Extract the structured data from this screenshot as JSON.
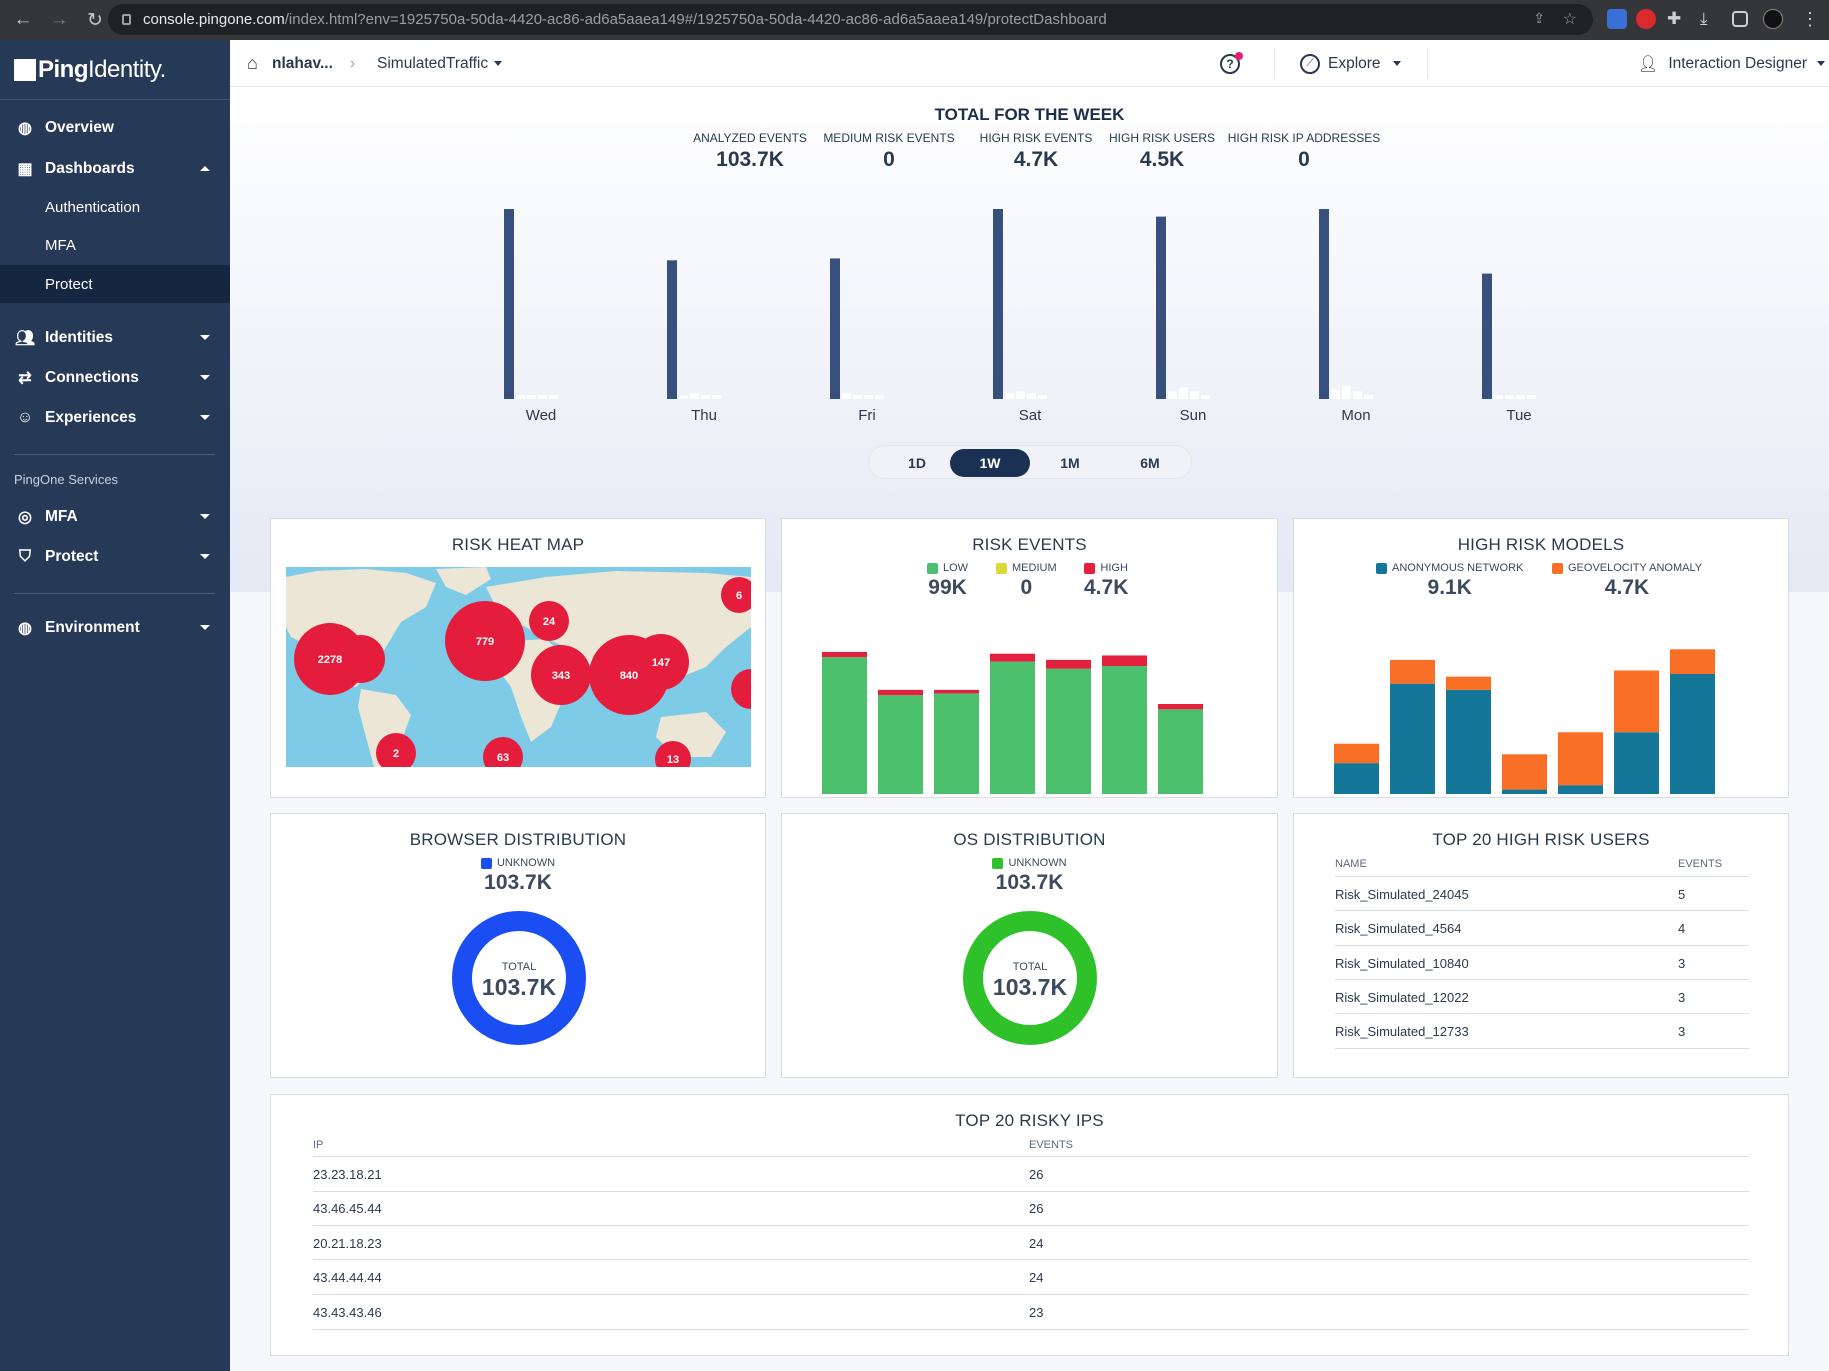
{
  "browser": {
    "url_host": "console.pingone.com",
    "url_path": "/index.html?env=1925750a-50da-4420-ac86-ad6a5aaea149#/1925750a-50da-4420-ac86-ad6a5aaea149/protectDashboard"
  },
  "sidebar": {
    "brand_bold": "Ping",
    "brand_light": "Identity.",
    "overview": "Overview",
    "dashboards": "Dashboards",
    "dash_items": [
      "Authentication",
      "MFA",
      "Protect"
    ],
    "identities": "Identities",
    "connections": "Connections",
    "experiences": "Experiences",
    "services_header": "PingOne Services",
    "svc_mfa": "MFA",
    "svc_protect": "Protect",
    "environment": "Environment"
  },
  "topbar": {
    "env_name": "nlahav...",
    "breadcrumb_sep": "›",
    "traffic": "SimulatedTraffic",
    "explore": "Explore",
    "user": "Interaction Designer"
  },
  "week": {
    "title": "TOTAL FOR THE WEEK",
    "stats": [
      {
        "label": "ANALYZED EVENTS",
        "value": "103.7K"
      },
      {
        "label": "MEDIUM RISK EVENTS",
        "value": "0"
      },
      {
        "label": "HIGH RISK EVENTS",
        "value": "4.7K"
      },
      {
        "label": "HIGH RISK USERS",
        "value": "4.5K"
      },
      {
        "label": "HIGH RISK IP ADDRESSES",
        "value": "0"
      }
    ]
  },
  "range": {
    "options": [
      "1D",
      "1W",
      "1M",
      "6M"
    ],
    "selected": "1W"
  },
  "cards": {
    "heatmap": {
      "title": "RISK HEAT MAP",
      "bubbles": [
        "2278",
        "779",
        "24",
        "6",
        "343",
        "840",
        "147",
        "2",
        "63",
        "13"
      ]
    },
    "risk_events": {
      "title": "RISK EVENTS",
      "legend": [
        {
          "label": "LOW",
          "value": "99K",
          "color": "#4bbf6b"
        },
        {
          "label": "MEDIUM",
          "value": "0",
          "color": "#d9d93a"
        },
        {
          "label": "HIGH",
          "value": "4.7K",
          "color": "#e3213f"
        }
      ]
    },
    "models": {
      "title": "HIGH RISK MODELS",
      "legend": [
        {
          "label": "ANONYMOUS NETWORK",
          "value": "9.1K",
          "color": "#14779a"
        },
        {
          "label": "GEOVELOCITY ANOMALY",
          "value": "4.7K",
          "color": "#f96f25"
        }
      ]
    },
    "browser": {
      "title": "BROWSER DISTRIBUTION",
      "legend_label": "UNKNOWN",
      "legend_value": "103.7K",
      "color": "#1b4ef2",
      "center_label": "TOTAL",
      "center_value": "103.7K"
    },
    "os": {
      "title": "OS DISTRIBUTION",
      "legend_label": "UNKNOWN",
      "legend_value": "103.7K",
      "color": "#2fc12a",
      "center_label": "TOTAL",
      "center_value": "103.7K"
    },
    "users": {
      "title": "TOP 20 HIGH RISK USERS",
      "col_name": "NAME",
      "col_events": "EVENTS",
      "rows": [
        {
          "name": "Risk_Simulated_24045",
          "events": "5"
        },
        {
          "name": "Risk_Simulated_4564",
          "events": "4"
        },
        {
          "name": "Risk_Simulated_10840",
          "events": "3"
        },
        {
          "name": "Risk_Simulated_12022",
          "events": "3"
        },
        {
          "name": "Risk_Simulated_12733",
          "events": "3"
        }
      ]
    },
    "ips": {
      "title": "TOP 20 RISKY IPS",
      "col_ip": "IP",
      "col_events": "EVENTS",
      "rows": [
        {
          "ip": "23.23.18.21",
          "events": "26"
        },
        {
          "ip": "43.46.45.44",
          "events": "26"
        },
        {
          "ip": "20.21.18.23",
          "events": "24"
        },
        {
          "ip": "43.44.44.44",
          "events": "24"
        },
        {
          "ip": "43.43.43.46",
          "events": "23"
        }
      ]
    }
  },
  "chart_data": [
    {
      "type": "bar",
      "title": "TOTAL FOR THE WEEK",
      "categories": [
        "Wed",
        "Thu",
        "Fri",
        "Sat",
        "Sun",
        "Mon",
        "Tue"
      ],
      "series": [
        {
          "values": [
            100,
            73,
            74,
            100,
            96,
            100,
            66
          ]
        },
        {
          "values": [
            2,
            2,
            3,
            3,
            4,
            5,
            2
          ]
        },
        {
          "values": [
            2,
            3,
            2,
            4,
            6,
            7,
            2
          ]
        },
        {
          "values": [
            2,
            2,
            2,
            3,
            4,
            4,
            2
          ]
        },
        {
          "values": [
            2,
            2,
            2,
            2,
            2,
            2,
            2
          ]
        }
      ],
      "colors": [
        "#38507e",
        "#ffffff",
        "#ffffff",
        "#ffffff",
        "#ffffff"
      ],
      "ylim": [
        0,
        100
      ]
    },
    {
      "type": "bar",
      "title": "RISK EVENTS",
      "categories": [
        "1",
        "2",
        "3",
        "4",
        "5",
        "6",
        "7"
      ],
      "stacked": true,
      "series": [
        {
          "name": "LOW",
          "values": [
            15.5,
            11.2,
            11.4,
            15.0,
            14.2,
            14.5,
            9.6
          ]
        },
        {
          "name": "HIGH",
          "values": [
            0.6,
            0.6,
            0.4,
            0.9,
            1.0,
            1.2,
            0.6
          ]
        }
      ],
      "colors": [
        "#4bbf6b",
        "#e3213f"
      ],
      "ylim": [
        0,
        17
      ]
    },
    {
      "type": "bar",
      "title": "HIGH RISK MODELS",
      "categories": [
        "1",
        "2",
        "3",
        "4",
        "5",
        "6",
        "7"
      ],
      "stacked": true,
      "series": [
        {
          "name": "ANONYMOUS NETWORK",
          "values": [
            3.5,
            12.5,
            11.8,
            0.5,
            1.0,
            7.0,
            13.6
          ]
        },
        {
          "name": "GEOVELOCITY ANOMALY",
          "values": [
            2.2,
            2.7,
            1.5,
            4.0,
            6.0,
            7.0,
            2.8
          ]
        }
      ],
      "colors": [
        "#14779a",
        "#f96f25"
      ],
      "ylim": [
        0,
        17
      ]
    }
  ]
}
